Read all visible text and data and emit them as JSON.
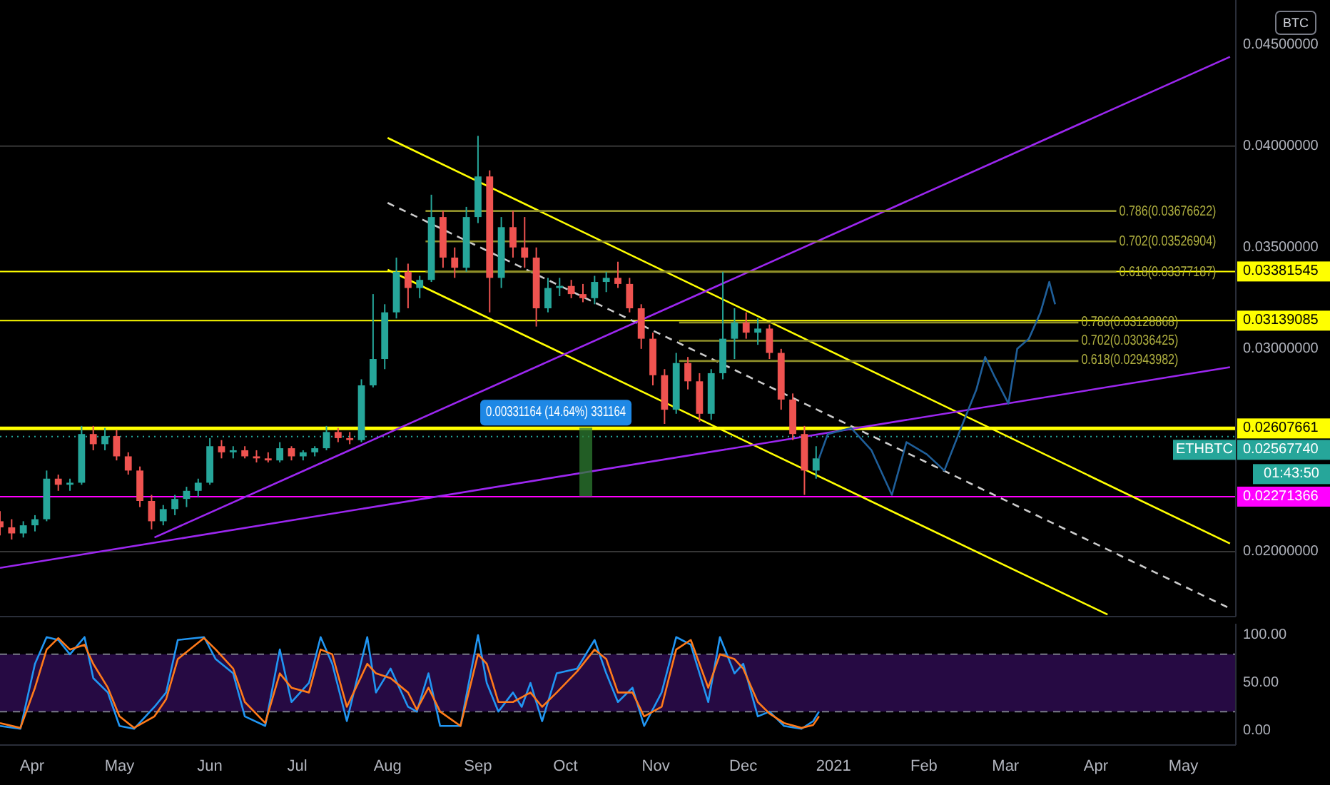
{
  "chart_data": [
    {
      "type": "candlestick",
      "colors": [
        "#ef5350",
        "#ef5350",
        "#26a69a",
        "#26a69a",
        "#26a69a",
        "#ef5350",
        "#26a69a",
        "#26a69a",
        "#ef5350",
        "#26a69a",
        "#ef5350",
        "#ef5350",
        "#ef5350",
        "#ef5350",
        "#26a69a",
        "#26a69a",
        "#26a69a",
        "#26a69a",
        "#26a69a",
        "#ef5350",
        "#26a69a",
        "#ef5350",
        "#ef5350",
        "#ef5350",
        "#26a69a",
        "#ef5350",
        "#26a69a",
        "#26a69a",
        "#26a69a",
        "#ef5350",
        "#ef5350",
        "#26a69a",
        "#26a69a",
        "#26a69a",
        "#26a69a",
        "#ef5350",
        "#26a69a",
        "#26a69a",
        "#ef5350",
        "#ef5350",
        "#26a69a",
        "#26a69a",
        "#ef5350",
        "#26a69a",
        "#ef5350",
        "#ef5350",
        "#ef5350",
        "#26a69a",
        "#26a69a",
        "#ef5350",
        "#ef5350",
        "#26a69a",
        "#26a69a",
        "#ef5350",
        "#ef5350",
        "#ef5350",
        "#ef5350",
        "#ef5350",
        "#26a69a",
        "#ef5350",
        "#ef5350",
        "#26a69a",
        "#26a69a",
        "#26a69a",
        "#ef5350",
        "#26a69a",
        "#ef5350",
        "#ef5350",
        "#ef5350",
        "#ef5350",
        "#26a69a"
      ],
      "x": [
        "2020-03-21",
        "2020-03-25",
        "2020-03-29",
        "2020-04-02",
        "2020-04-06",
        "2020-04-10",
        "2020-04-14",
        "2020-04-18",
        "2020-04-22",
        "2020-04-26",
        "2020-04-30",
        "2020-05-04",
        "2020-05-08",
        "2020-05-12",
        "2020-05-16",
        "2020-05-20",
        "2020-05-24",
        "2020-05-28",
        "2020-06-01",
        "2020-06-05",
        "2020-06-09",
        "2020-06-13",
        "2020-06-17",
        "2020-06-21",
        "2020-06-25",
        "2020-06-29",
        "2020-07-03",
        "2020-07-07",
        "2020-07-11",
        "2020-07-15",
        "2020-07-19",
        "2020-07-23",
        "2020-07-27",
        "2020-07-31",
        "2020-08-04",
        "2020-08-08",
        "2020-08-12",
        "2020-08-16",
        "2020-08-20",
        "2020-08-24",
        "2020-08-28",
        "2020-09-01",
        "2020-09-05",
        "2020-09-09",
        "2020-09-13",
        "2020-09-17",
        "2020-09-21",
        "2020-09-25",
        "2020-09-29",
        "2020-10-03",
        "2020-10-07",
        "2020-10-11",
        "2020-10-15",
        "2020-10-19",
        "2020-10-23",
        "2020-10-27",
        "2020-10-31",
        "2020-11-04",
        "2020-11-08",
        "2020-11-12",
        "2020-11-16",
        "2020-11-20",
        "2020-11-24",
        "2020-11-28",
        "2020-12-02",
        "2020-12-06",
        "2020-12-10",
        "2020-12-14",
        "2020-12-18",
        "2020-12-22",
        "2020-12-26"
      ],
      "ohlc": [
        [
          0.0215,
          0.022,
          0.0208,
          0.0212
        ],
        [
          0.0212,
          0.0216,
          0.0206,
          0.0209
        ],
        [
          0.0209,
          0.0215,
          0.0207,
          0.0213
        ],
        [
          0.0213,
          0.0218,
          0.021,
          0.0216
        ],
        [
          0.0216,
          0.024,
          0.0215,
          0.0236
        ],
        [
          0.0236,
          0.0238,
          0.023,
          0.0233
        ],
        [
          0.0233,
          0.0236,
          0.023,
          0.0234
        ],
        [
          0.0234,
          0.0262,
          0.0233,
          0.0258
        ],
        [
          0.0258,
          0.0262,
          0.025,
          0.0253
        ],
        [
          0.0253,
          0.0261,
          0.025,
          0.0257
        ],
        [
          0.0257,
          0.026,
          0.0245,
          0.0247
        ],
        [
          0.0247,
          0.0249,
          0.0238,
          0.024
        ],
        [
          0.024,
          0.0242,
          0.0222,
          0.0225
        ],
        [
          0.0225,
          0.0228,
          0.0211,
          0.0215
        ],
        [
          0.0215,
          0.0223,
          0.0213,
          0.0221
        ],
        [
          0.0221,
          0.0228,
          0.0218,
          0.0226
        ],
        [
          0.0226,
          0.0232,
          0.0222,
          0.023
        ],
        [
          0.023,
          0.0236,
          0.0227,
          0.0234
        ],
        [
          0.0234,
          0.0256,
          0.0233,
          0.0252
        ],
        [
          0.0252,
          0.0255,
          0.0246,
          0.0249
        ],
        [
          0.0249,
          0.0252,
          0.0246,
          0.025
        ],
        [
          0.025,
          0.0252,
          0.0246,
          0.0247
        ],
        [
          0.0247,
          0.025,
          0.0244,
          0.0246
        ],
        [
          0.0246,
          0.0249,
          0.0244,
          0.0245
        ],
        [
          0.0245,
          0.0254,
          0.0244,
          0.0251
        ],
        [
          0.0251,
          0.0252,
          0.0245,
          0.0247
        ],
        [
          0.0247,
          0.025,
          0.0245,
          0.0249
        ],
        [
          0.0249,
          0.0252,
          0.0247,
          0.0251
        ],
        [
          0.0251,
          0.0262,
          0.025,
          0.0259
        ],
        [
          0.0259,
          0.0261,
          0.0254,
          0.0256
        ],
        [
          0.0256,
          0.0259,
          0.0253,
          0.0255
        ],
        [
          0.0255,
          0.0285,
          0.0254,
          0.0282
        ],
        [
          0.0282,
          0.0327,
          0.0281,
          0.0295
        ],
        [
          0.0295,
          0.0322,
          0.029,
          0.0318
        ],
        [
          0.0318,
          0.0345,
          0.0315,
          0.0338
        ],
        [
          0.0338,
          0.0342,
          0.032,
          0.033
        ],
        [
          0.033,
          0.0336,
          0.0325,
          0.0334
        ],
        [
          0.0334,
          0.0376,
          0.0333,
          0.0365
        ],
        [
          0.0365,
          0.0368,
          0.034,
          0.0345
        ],
        [
          0.0345,
          0.035,
          0.0335,
          0.034
        ],
        [
          0.034,
          0.037,
          0.0338,
          0.0365
        ],
        [
          0.0365,
          0.0405,
          0.0362,
          0.0385
        ],
        [
          0.0385,
          0.0388,
          0.0318,
          0.0335
        ],
        [
          0.0335,
          0.0365,
          0.033,
          0.036
        ],
        [
          0.036,
          0.0368,
          0.0345,
          0.035
        ],
        [
          0.035,
          0.0365,
          0.034,
          0.0345
        ],
        [
          0.0345,
          0.035,
          0.0311,
          0.032
        ],
        [
          0.032,
          0.0335,
          0.0318,
          0.033
        ],
        [
          0.033,
          0.0335,
          0.0326,
          0.0331
        ],
        [
          0.0331,
          0.0334,
          0.0325,
          0.0327
        ],
        [
          0.0327,
          0.0332,
          0.0323,
          0.0325
        ],
        [
          0.0325,
          0.0336,
          0.0322,
          0.0333
        ],
        [
          0.0333,
          0.0338,
          0.0328,
          0.0335
        ],
        [
          0.0335,
          0.0343,
          0.033,
          0.0332
        ],
        [
          0.0332,
          0.0335,
          0.0318,
          0.032
        ],
        [
          0.032,
          0.0322,
          0.03,
          0.0305
        ],
        [
          0.0305,
          0.0308,
          0.0282,
          0.0287
        ],
        [
          0.0287,
          0.029,
          0.0263,
          0.027
        ],
        [
          0.027,
          0.0298,
          0.0268,
          0.0293
        ],
        [
          0.0293,
          0.0296,
          0.028,
          0.0284
        ],
        [
          0.0284,
          0.0288,
          0.0264,
          0.0268
        ],
        [
          0.0268,
          0.029,
          0.0265,
          0.0288
        ],
        [
          0.0288,
          0.0338,
          0.0285,
          0.0305
        ],
        [
          0.0305,
          0.032,
          0.0295,
          0.0313
        ],
        [
          0.0313,
          0.0318,
          0.0305,
          0.0308
        ],
        [
          0.0308,
          0.0315,
          0.0302,
          0.031
        ],
        [
          0.031,
          0.0312,
          0.0295,
          0.0298
        ],
        [
          0.0298,
          0.03,
          0.027,
          0.0275
        ],
        [
          0.0275,
          0.0278,
          0.0255,
          0.0258
        ],
        [
          0.0258,
          0.0262,
          0.0228,
          0.024
        ],
        [
          0.024,
          0.0252,
          0.0236,
          0.0246
        ]
      ],
      "series": [
        {
          "type": "line",
          "color": "#ffff00",
          "x": [
            "2020-08-01",
            "2021-05-17"
          ],
          "values": [
            0.0404,
            0.0204
          ]
        },
        {
          "type": "line",
          "color": "#ffff00",
          "x": [
            "2020-08-01",
            "2021-04-05"
          ],
          "values": [
            0.0339,
            0.0169
          ]
        },
        {
          "type": "line",
          "color": "#cccccc",
          "line_style": "dashed",
          "x": [
            "2020-08-01",
            "2021-05-17"
          ],
          "values": [
            0.0372,
            0.0172
          ]
        },
        {
          "type": "line",
          "color": "#9c27f0",
          "x": [
            "2020-05-13",
            "2021-05-17"
          ],
          "values": [
            0.0207,
            0.0444
          ]
        },
        {
          "type": "line",
          "color": "#9c27f0",
          "x": [
            "2020-03-21",
            "2021-05-17"
          ],
          "values": [
            0.0192,
            0.0291
          ]
        },
        {
          "type": "line",
          "color": "#8f8f2a",
          "x": [
            "2020-08-14",
            "2021-04-08"
          ],
          "values": [
            0.0368,
            0.0368
          ]
        },
        {
          "type": "line",
          "color": "#8f8f2a",
          "x": [
            "2020-08-14",
            "2021-04-08"
          ],
          "values": [
            0.0353,
            0.0353
          ]
        },
        {
          "type": "line",
          "color": "#8f8f2a",
          "x": [
            "2020-08-14",
            "2021-04-08"
          ],
          "values": [
            0.0338,
            0.0338
          ]
        },
        {
          "type": "line",
          "color": "#8f8f2a",
          "x": [
            "2020-11-09",
            "2021-03-26"
          ],
          "values": [
            0.0313,
            0.0313
          ]
        },
        {
          "type": "line",
          "color": "#8f8f2a",
          "x": [
            "2020-11-09",
            "2021-03-26"
          ],
          "values": [
            0.0304,
            0.0304
          ]
        },
        {
          "type": "line",
          "color": "#8f8f2a",
          "x": [
            "2020-11-09",
            "2021-03-26"
          ],
          "values": [
            0.0294,
            0.0294
          ]
        },
        {
          "type": "line",
          "color": "#1f5f9a",
          "x": [
            "2020-12-27",
            "2020-12-30",
            "2021-01-07",
            "2021-01-14",
            "2021-01-21",
            "2021-01-26",
            "2021-02-02",
            "2021-02-08",
            "2021-02-14",
            "2021-02-19",
            "2021-02-22",
            "2021-02-25",
            "2021-03-02",
            "2021-03-05",
            "2021-03-09",
            "2021-03-13",
            "2021-03-16",
            "2021-03-18"
          ],
          "values": [
            0.0246,
            0.0258,
            0.0261,
            0.025,
            0.0228,
            0.0254,
            0.0248,
            0.024,
            0.0262,
            0.028,
            0.0296,
            0.0287,
            0.0273,
            0.03,
            0.0305,
            0.0318,
            0.0333,
            0.0322
          ]
        },
        {
          "type": "bar",
          "color": "#2e7d32",
          "x": [
            "2020-10-08"
          ],
          "base": [
            0.02276497
          ],
          "values": [
            0.00331164
          ],
          "value_labels": [
            "0.00331164 (14.64%) 331164"
          ]
        }
      ],
      "ref_lines": [
        {
          "axis": "y",
          "value": 0.04,
          "color": "#363636"
        },
        {
          "axis": "y",
          "value": 0.02,
          "color": "#363636"
        },
        {
          "axis": "y",
          "value": 0.03381545,
          "label": "0.03381545",
          "color": "#ffff00"
        },
        {
          "axis": "y",
          "value": 0.03139085,
          "label": "0.03139085",
          "color": "#ffff00"
        },
        {
          "axis": "y",
          "value": 0.02607661,
          "label": "0.02607661",
          "color": "#ffff00"
        },
        {
          "axis": "y",
          "value": 0.0256774,
          "label": "0.02567740",
          "color": "#26a69a",
          "line_style": "dotted"
        },
        {
          "axis": "y",
          "value": 0.02271366,
          "label": "0.02271366",
          "color": "#ff00ff"
        }
      ],
      "annotations": [
        "BTC",
        {
          "text": "0.786(0.03676622)",
          "x": "2021-04-08",
          "y": 0.03676622
        },
        {
          "text": "0.702(0.03526904)",
          "x": "2021-04-08",
          "y": 0.03526904
        },
        {
          "text": "0.618(0.03377187)",
          "x": "2021-04-08",
          "y": 0.03377187
        },
        {
          "text": "0.786(0.03128868)",
          "x": "2021-03-26",
          "y": 0.03128868
        },
        {
          "text": "0.702(0.03036425)",
          "x": "2021-03-26",
          "y": 0.03036425
        },
        {
          "text": "0.618(0.02943982)",
          "x": "2021-03-26",
          "y": 0.02943982
        },
        {
          "text": "ETHBTC",
          "y": 0.0256774
        },
        "01:43:50"
      ],
      "xlim": [
        "2020-03-21",
        "2021-05-19"
      ],
      "ylim": [
        0.0168,
        0.0472
      ],
      "yticks": [
        {
          "value": 0.02,
          "label": "0.02000000"
        },
        {
          "value": 0.03,
          "label": "0.03000000"
        },
        {
          "value": 0.035,
          "label": "0.03500000"
        },
        {
          "value": 0.04,
          "label": "0.04000000"
        },
        {
          "value": 0.045,
          "label": "0.04500000"
        }
      ],
      "tick_labels": "y"
    },
    {
      "type": "line",
      "series": [
        {
          "color": "#2196f3",
          "x": [
            "2020-03-21",
            "2020-03-28",
            "2020-04-02",
            "2020-04-06",
            "2020-04-10",
            "2020-04-14",
            "2020-04-19",
            "2020-04-22",
            "2020-04-27",
            "2020-05-01",
            "2020-05-06",
            "2020-05-13",
            "2020-05-17",
            "2020-05-21",
            "2020-05-30",
            "2020-06-03",
            "2020-06-09",
            "2020-06-13",
            "2020-06-20",
            "2020-06-25",
            "2020-06-29",
            "2020-07-05",
            "2020-07-09",
            "2020-07-13",
            "2020-07-18",
            "2020-07-25",
            "2020-07-28",
            "2020-08-02",
            "2020-08-08",
            "2020-08-11",
            "2020-08-15",
            "2020-08-19",
            "2020-08-26",
            "2020-09-01",
            "2020-09-04",
            "2020-09-08",
            "2020-09-13",
            "2020-09-16",
            "2020-09-19",
            "2020-09-23",
            "2020-09-28",
            "2020-10-05",
            "2020-10-11",
            "2020-10-15",
            "2020-10-19",
            "2020-10-24",
            "2020-10-28",
            "2020-11-03",
            "2020-11-08",
            "2020-11-13",
            "2020-11-19",
            "2020-11-23",
            "2020-11-28",
            "2020-12-01",
            "2020-12-06",
            "2020-12-10",
            "2020-12-15",
            "2020-12-21",
            "2020-12-25",
            "2020-12-27"
          ],
          "values": [
            5,
            2,
            70,
            98,
            95,
            80,
            98,
            55,
            40,
            5,
            2,
            25,
            40,
            95,
            98,
            75,
            60,
            15,
            5,
            85,
            30,
            50,
            98,
            70,
            10,
            98,
            40,
            65,
            25,
            20,
            60,
            5,
            5,
            100,
            50,
            20,
            40,
            25,
            50,
            10,
            60,
            65,
            95,
            60,
            30,
            45,
            5,
            40,
            98,
            90,
            30,
            98,
            60,
            70,
            15,
            20,
            5,
            2,
            10,
            20
          ]
        },
        {
          "color": "#ff7a1a",
          "x": [
            "2020-03-21",
            "2020-03-28",
            "2020-04-02",
            "2020-04-06",
            "2020-04-10",
            "2020-04-14",
            "2020-04-19",
            "2020-04-22",
            "2020-04-27",
            "2020-05-01",
            "2020-05-06",
            "2020-05-13",
            "2020-05-17",
            "2020-05-21",
            "2020-05-30",
            "2020-06-03",
            "2020-06-09",
            "2020-06-13",
            "2020-06-20",
            "2020-06-25",
            "2020-06-29",
            "2020-07-05",
            "2020-07-09",
            "2020-07-13",
            "2020-07-18",
            "2020-07-25",
            "2020-07-28",
            "2020-08-02",
            "2020-08-08",
            "2020-08-11",
            "2020-08-15",
            "2020-08-19",
            "2020-08-26",
            "2020-09-01",
            "2020-09-04",
            "2020-09-08",
            "2020-09-13",
            "2020-09-16",
            "2020-09-19",
            "2020-09-23",
            "2020-09-28",
            "2020-10-05",
            "2020-10-11",
            "2020-10-15",
            "2020-10-19",
            "2020-10-24",
            "2020-10-28",
            "2020-11-03",
            "2020-11-08",
            "2020-11-13",
            "2020-11-19",
            "2020-11-23",
            "2020-11-28",
            "2020-12-01",
            "2020-12-06",
            "2020-12-10",
            "2020-12-15",
            "2020-12-21",
            "2020-12-25",
            "2020-12-27"
          ],
          "values": [
            8,
            3,
            45,
            85,
            97,
            85,
            90,
            70,
            45,
            15,
            3,
            15,
            33,
            75,
            97,
            85,
            65,
            30,
            8,
            60,
            45,
            40,
            85,
            80,
            25,
            70,
            60,
            55,
            40,
            22,
            45,
            20,
            5,
            80,
            70,
            30,
            30,
            35,
            40,
            25,
            40,
            62,
            85,
            75,
            40,
            40,
            15,
            25,
            85,
            95,
            45,
            80,
            75,
            65,
            30,
            18,
            8,
            3,
            6,
            15
          ]
        }
      ],
      "bands": [
        {
          "axis": "y",
          "from": 20,
          "to": 80,
          "color": "#2a0b4a"
        }
      ],
      "ref_lines": [
        {
          "axis": "y",
          "value": 80,
          "color": "#787b86",
          "line_style": "dashed"
        },
        {
          "axis": "y",
          "value": 20,
          "color": "#787b86",
          "line_style": "dashed"
        }
      ],
      "xlim": [
        "2020-03-21",
        "2021-05-19"
      ],
      "ylim": [
        -15,
        112
      ],
      "xticks": [
        {
          "value": "2020-04-01",
          "label": "Apr"
        },
        {
          "value": "2020-05-01",
          "label": "May"
        },
        {
          "value": "2020-06-01",
          "label": "Jun"
        },
        {
          "value": "2020-07-01",
          "label": "Jul"
        },
        {
          "value": "2020-08-01",
          "label": "Aug"
        },
        {
          "value": "2020-09-01",
          "label": "Sep"
        },
        {
          "value": "2020-10-01",
          "label": "Oct"
        },
        {
          "value": "2020-11-01",
          "label": "Nov"
        },
        {
          "value": "2020-12-01",
          "label": "Dec"
        },
        {
          "value": "2021-01-01",
          "label": "2021"
        },
        {
          "value": "2021-02-01",
          "label": "Feb"
        },
        {
          "value": "2021-03-01",
          "label": "Mar"
        },
        {
          "value": "2021-04-01",
          "label": "Apr"
        },
        {
          "value": "2021-05-01",
          "label": "May"
        }
      ],
      "yticks": [
        {
          "value": 0,
          "label": "0.00"
        },
        {
          "value": 50,
          "label": "50.00"
        },
        {
          "value": 100,
          "label": "100.00"
        }
      ]
    }
  ]
}
